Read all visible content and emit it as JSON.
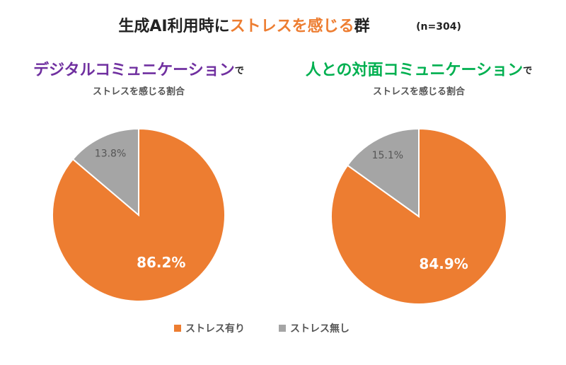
{
  "header": {
    "title_parts": [
      {
        "text": "生成AI利用時に"
      },
      {
        "text": "ストレスを感じる",
        "color": "#ed7d31"
      },
      {
        "text": "群"
      }
    ],
    "sample": "(n=304)"
  },
  "legend": {
    "labels": [
      "ストレス有り",
      "ストレス無し"
    ],
    "colors": [
      "#ed7d31",
      "#a5a5a5"
    ]
  },
  "chart_data": [
    {
      "type": "pie",
      "title_parts": [
        {
          "text": "デジタルコミュニケーション",
          "color": "#7030a0"
        },
        {
          "text": "で",
          "small": true
        }
      ],
      "subtitle": "ストレスを感じる割合",
      "values": [
        86.2,
        13.8
      ],
      "value_labels": [
        "86.2%",
        "13.8%"
      ]
    },
    {
      "type": "pie",
      "title_parts": [
        {
          "text": "人との対面コミュニケーション",
          "color": "#00b050"
        },
        {
          "text": "で",
          "small": true
        }
      ],
      "subtitle": "ストレスを感じる割合",
      "values": [
        84.9,
        15.1
      ],
      "value_labels": [
        "84.9%",
        "15.1%"
      ]
    }
  ]
}
